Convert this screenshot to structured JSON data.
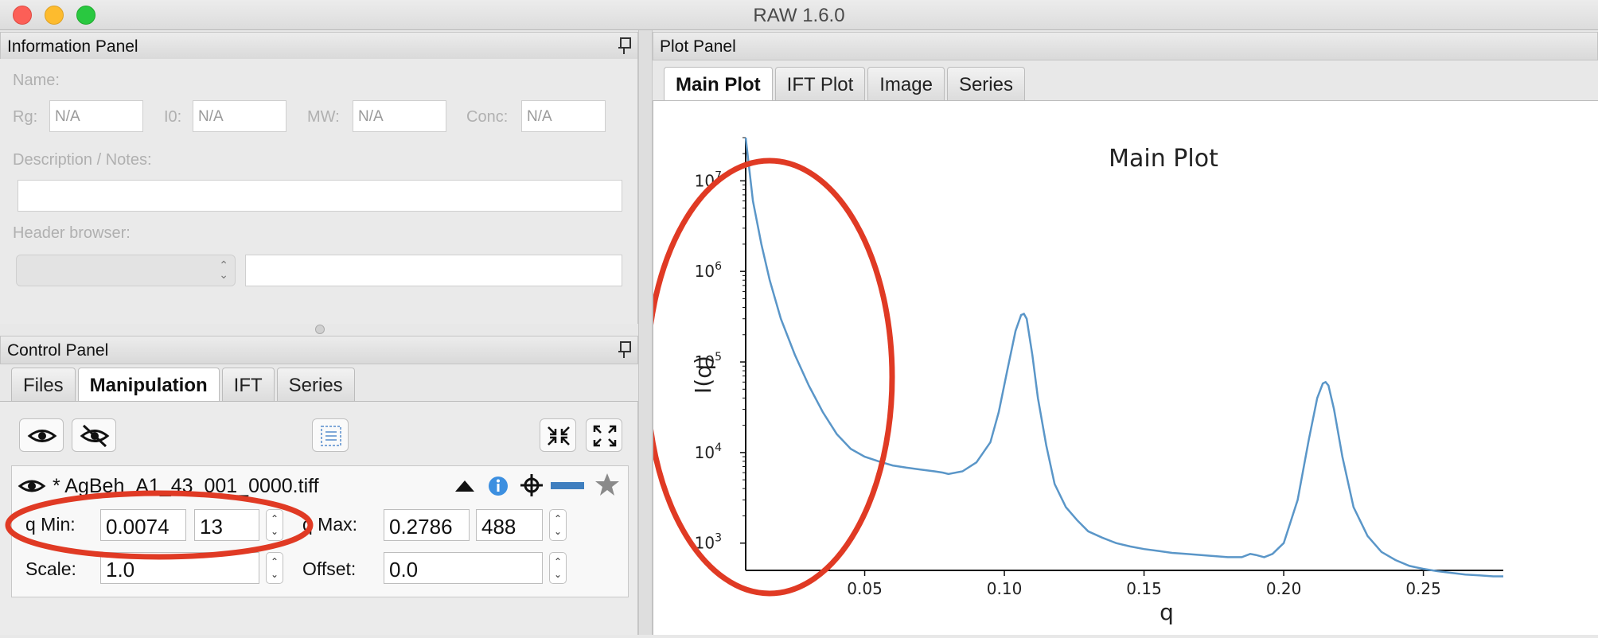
{
  "window": {
    "title": "RAW 1.6.0"
  },
  "info_panel": {
    "title": "Information Panel",
    "name_label": "Name:",
    "rg_label": "Rg:",
    "rg_value": "N/A",
    "i0_label": "I0:",
    "i0_value": "N/A",
    "mw_label": "MW:",
    "mw_value": "N/A",
    "conc_label": "Conc:",
    "conc_value": "N/A",
    "desc_label": "Description / Notes:",
    "header_label": "Header browser:"
  },
  "control_panel": {
    "title": "Control Panel",
    "tabs": [
      "Files",
      "Manipulation",
      "IFT",
      "Series"
    ],
    "active_tab": "Manipulation",
    "item": {
      "filename": "* AgBeh_A1_43_001_0000.tiff",
      "qmin_label": "q Min:",
      "qmin_value": "0.0074",
      "qmin_index": "13",
      "qmax_label": "q Max:",
      "qmax_value": "0.2786",
      "qmax_index": "488",
      "scale_label": "Scale:",
      "scale_value": "1.0",
      "offset_label": "Offset:",
      "offset_value": "0.0",
      "line_color": "#3f7fbf"
    }
  },
  "plot_panel": {
    "title": "Plot Panel",
    "tabs": [
      "Main Plot",
      "IFT Plot",
      "Image",
      "Series"
    ],
    "active_tab": "Main Plot"
  },
  "annotations": {
    "circle_color": "#e03a24"
  },
  "chart_data": {
    "type": "line",
    "title": "Main Plot",
    "xlabel": "q",
    "ylabel": "I(q)",
    "yscale": "log",
    "xlim": [
      0.0074,
      0.2786
    ],
    "ylim": [
      500,
      30000000
    ],
    "xticks": [
      "0.05",
      "0.10",
      "0.15",
      "0.20",
      "0.25"
    ],
    "xtick_values": [
      0.05,
      0.1,
      0.15,
      0.2,
      0.25
    ],
    "yticks": [
      "10^3",
      "10^4",
      "10^5",
      "10^6",
      "10^7"
    ],
    "ytick_values": [
      1000,
      10000,
      100000,
      1000000,
      10000000
    ],
    "grid": false,
    "series": [
      {
        "color": "#5a96c8",
        "x": [
          0.0074,
          0.01,
          0.013,
          0.016,
          0.02,
          0.025,
          0.03,
          0.035,
          0.04,
          0.045,
          0.05,
          0.055,
          0.06,
          0.065,
          0.07,
          0.075,
          0.078,
          0.08,
          0.085,
          0.09,
          0.095,
          0.098,
          0.101,
          0.104,
          0.106,
          0.107,
          0.108,
          0.11,
          0.112,
          0.115,
          0.118,
          0.122,
          0.126,
          0.13,
          0.135,
          0.14,
          0.145,
          0.15,
          0.155,
          0.16,
          0.165,
          0.17,
          0.175,
          0.18,
          0.185,
          0.188,
          0.19,
          0.193,
          0.196,
          0.2,
          0.205,
          0.209,
          0.212,
          0.214,
          0.215,
          0.216,
          0.218,
          0.221,
          0.225,
          0.23,
          0.235,
          0.24,
          0.245,
          0.25,
          0.255,
          0.26,
          0.265,
          0.27,
          0.275,
          0.2786
        ],
        "y": [
          30000000,
          6000000,
          2000000,
          800000,
          300000,
          120000,
          55000,
          28000,
          16000,
          11000,
          9000,
          8000,
          7200,
          6800,
          6500,
          6200,
          6000,
          5800,
          6200,
          7800,
          13000,
          28000,
          80000,
          220000,
          330000,
          340000,
          300000,
          120000,
          40000,
          12000,
          4500,
          2500,
          1800,
          1350,
          1150,
          1000,
          920,
          860,
          820,
          780,
          760,
          740,
          720,
          700,
          700,
          760,
          740,
          700,
          760,
          1000,
          3000,
          14000,
          40000,
          58000,
          60000,
          55000,
          30000,
          9000,
          2500,
          1200,
          800,
          650,
          560,
          520,
          490,
          470,
          450,
          440,
          430,
          430
        ]
      }
    ]
  }
}
